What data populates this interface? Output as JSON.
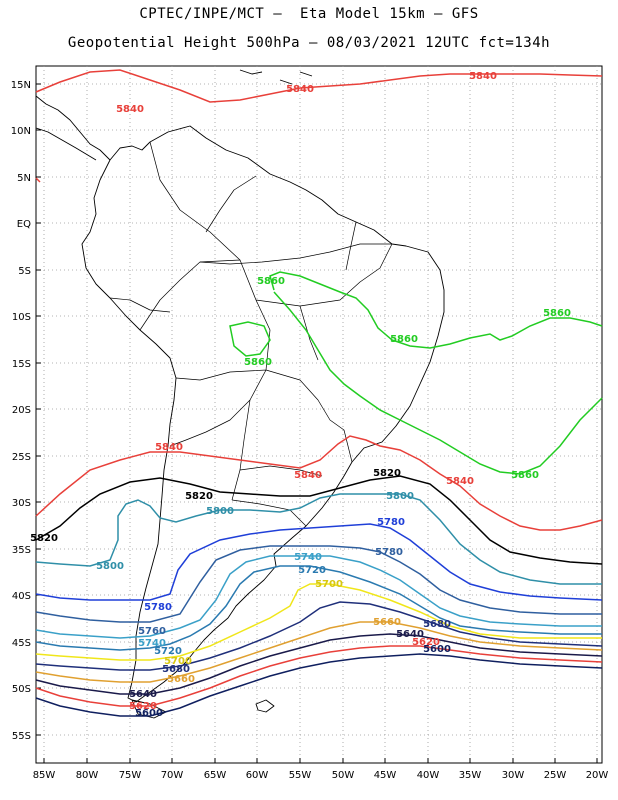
{
  "title_line1": "CPTEC/INPE/MCT –  Eta Model 15km – GFS",
  "title_line2": "Geopotential Height 500hPa – 08/03/2021 12UTC fct=134h",
  "axes": {
    "lat_labels": [
      "15N",
      "10N",
      "5N",
      "EQ",
      "5S",
      "10S",
      "15S",
      "20S",
      "25S",
      "30S",
      "35S",
      "40S",
      "45S",
      "50S",
      "55S"
    ],
    "lon_labels": [
      "85W",
      "80W",
      "75W",
      "70W",
      "65W",
      "60W",
      "55W",
      "50W",
      "45W",
      "40W",
      "35W",
      "30W",
      "25W",
      "20W"
    ],
    "grid": "dotted"
  },
  "contours": [
    {
      "value": "5860",
      "color": "#22cc22"
    },
    {
      "value": "5840",
      "color": "#e8403a"
    },
    {
      "value": "5820",
      "color": "#000000"
    },
    {
      "value": "5800",
      "color": "#2f8fa8"
    },
    {
      "value": "5780",
      "color": "#1f3fd8"
    },
    {
      "value": "5760",
      "color": "#2f5f9f"
    },
    {
      "value": "5740",
      "color": "#3aa0c8"
    },
    {
      "value": "5720",
      "color": "#2a7ab0"
    },
    {
      "value": "5700",
      "color": "#f0e61a"
    },
    {
      "value": "5680",
      "color": "#1f2f7a"
    },
    {
      "value": "5660",
      "color": "#e0a030"
    },
    {
      "value": "5640",
      "color": "#1a1a4a"
    },
    {
      "value": "5620",
      "color": "#e8403a"
    },
    {
      "value": "5600",
      "color": "#0f1f5f"
    }
  ],
  "labels": [
    {
      "text": "5840",
      "color": "#e8403a"
    },
    {
      "text": "5840",
      "color": "#e8403a"
    },
    {
      "text": "5840",
      "color": "#e8403a"
    },
    {
      "text": "5860",
      "color": "#22cc22"
    },
    {
      "text": "5860",
      "color": "#22cc22"
    },
    {
      "text": "5860",
      "color": "#22cc22"
    },
    {
      "text": "5860",
      "color": "#22cc22"
    },
    {
      "text": "5860",
      "color": "#22cc22"
    },
    {
      "text": "5840",
      "color": "#e8403a"
    },
    {
      "text": "5840",
      "color": "#e8403a"
    },
    {
      "text": "5840",
      "color": "#e8403a"
    },
    {
      "text": "5820",
      "color": "#000000"
    },
    {
      "text": "5820",
      "color": "#000000"
    },
    {
      "text": "5820",
      "color": "#000000"
    },
    {
      "text": "5800",
      "color": "#2f8fa8"
    },
    {
      "text": "5800",
      "color": "#2f8fa8"
    },
    {
      "text": "5800",
      "color": "#2f8fa8"
    },
    {
      "text": "5780",
      "color": "#1f3fd8"
    },
    {
      "text": "5780",
      "color": "#2f5f9f"
    },
    {
      "text": "5780",
      "color": "#1f3fd8"
    },
    {
      "text": "5740",
      "color": "#3aa0c8"
    },
    {
      "text": "5720",
      "color": "#2a7ab0"
    },
    {
      "text": "5700",
      "color": "#d8c810"
    },
    {
      "text": "5760",
      "color": "#2f5f9f"
    },
    {
      "text": "5740",
      "color": "#3aa0c8"
    },
    {
      "text": "5720",
      "color": "#2a7ab0"
    },
    {
      "text": "5700",
      "color": "#d8c810"
    },
    {
      "text": "5680",
      "color": "#1f2f7a"
    },
    {
      "text": "5660",
      "color": "#e0a030"
    },
    {
      "text": "5660",
      "color": "#e0a030"
    },
    {
      "text": "5680",
      "color": "#1f2f7a"
    },
    {
      "text": "5640",
      "color": "#1a1a4a"
    },
    {
      "text": "5620",
      "color": "#e8403a"
    },
    {
      "text": "5600",
      "color": "#0f1f5f"
    },
    {
      "text": "5640",
      "color": "#1a1a4a"
    },
    {
      "text": "5620",
      "color": "#e8403a"
    },
    {
      "text": "5600",
      "color": "#0f1f5f"
    }
  ]
}
